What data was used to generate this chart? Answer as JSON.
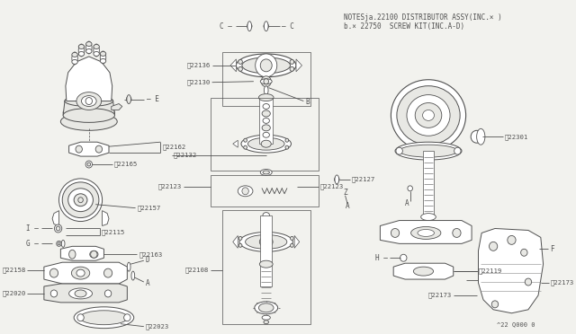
{
  "bg_color": "#f2f2ee",
  "line_color": "#505050",
  "notes_line1": "NOTESja.22100 DISTRIBUTOR ASSY(INC.× )",
  "notes_line2": "b.× 22750  SCREW KIT(INC.A-D)",
  "footer": "^22 Q000 0",
  "white": "#ffffff",
  "light_gray": "#e8e8e4",
  "mid_gray": "#c8c8c4",
  "dark_gray": "#a0a0a0"
}
